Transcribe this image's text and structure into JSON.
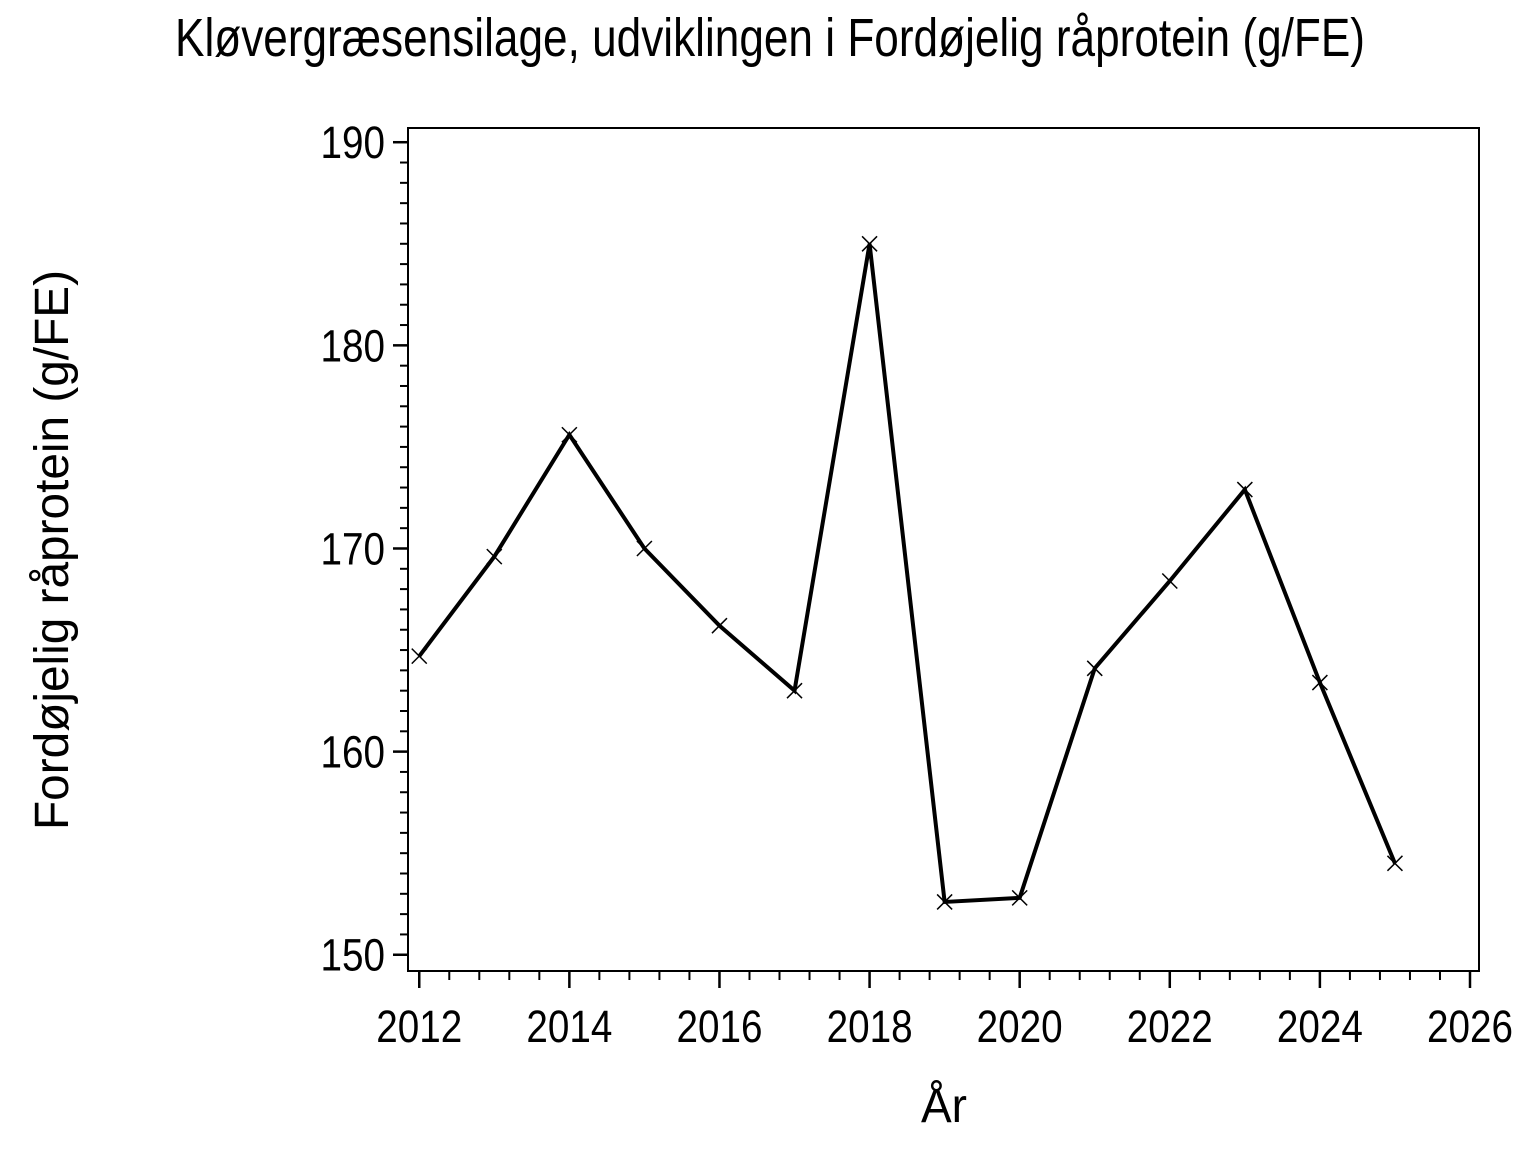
{
  "chart_data": {
    "type": "line",
    "title": "Kløvergræsensilage, udviklingen i Fordøjelig råprotein (g/FE)",
    "xlabel": "År",
    "ylabel": "Fordøjelig råprotein (g/FE)",
    "x": [
      2012,
      2013,
      2014,
      2015,
      2016,
      2017,
      2018,
      2019,
      2020,
      2021,
      2022,
      2023,
      2024,
      2025
    ],
    "values": [
      164.7,
      169.6,
      175.6,
      170.0,
      166.2,
      163.0,
      185.0,
      152.6,
      152.8,
      164.1,
      168.4,
      172.9,
      163.4,
      154.5
    ],
    "series_name": "Fordøjelig råprotein (g/FE)",
    "xlim": [
      2011.85,
      2026.12
    ],
    "ylim": [
      149.2,
      190.7
    ],
    "x_ticks": [
      2012,
      2014,
      2016,
      2018,
      2020,
      2022,
      2024,
      2026
    ],
    "x_minor_between": 4,
    "y_ticks": [
      150,
      160,
      170,
      180,
      190
    ],
    "y_minor_between": 9,
    "marker": "x",
    "line_color": "#000000",
    "axis_color": "#000000",
    "background_color": "#ffffff",
    "grid": false,
    "legend": null
  }
}
